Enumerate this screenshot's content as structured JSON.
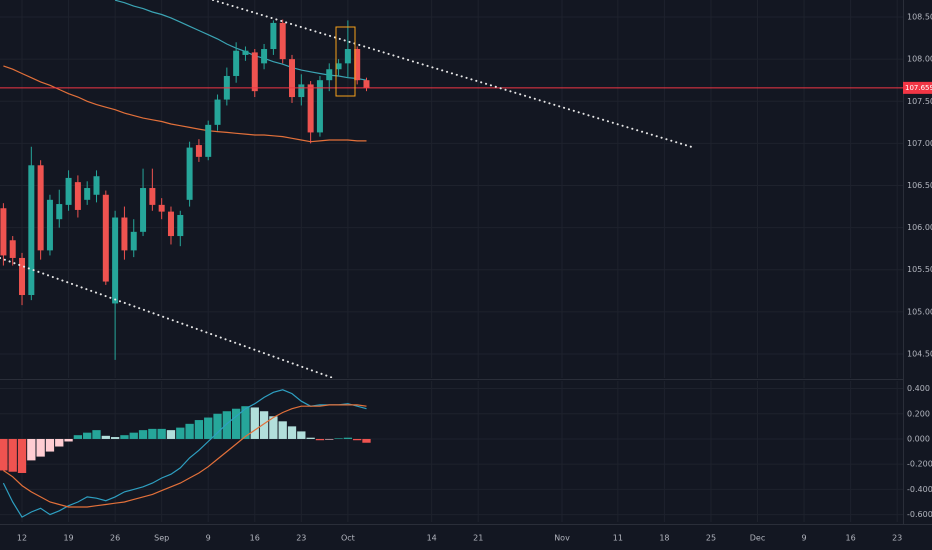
{
  "chart_data": [
    {
      "type": "candlestick",
      "categories": [
        null,
        null,
        "12",
        null,
        null,
        null,
        null,
        "19",
        null,
        null,
        null,
        null,
        "26",
        null,
        null,
        null,
        null,
        "Sep",
        null,
        null,
        null,
        null,
        "9",
        null,
        null,
        null,
        null,
        "16",
        null,
        null,
        null,
        null,
        "23",
        null,
        null,
        null,
        null,
        "Oct",
        null,
        null,
        null,
        null,
        null,
        null,
        null,
        null,
        "14",
        null,
        null,
        null,
        null,
        "21",
        null,
        null,
        null,
        null,
        null,
        null,
        null,
        null,
        "Nov",
        null,
        null,
        null,
        null,
        null,
        "11",
        null,
        null,
        null,
        null,
        "18",
        null,
        null,
        null,
        null,
        "25",
        null,
        null,
        null,
        null,
        "Dec",
        null,
        null,
        null,
        null,
        "9",
        null,
        null,
        null,
        null,
        "16",
        null,
        null,
        null,
        null,
        "23"
      ],
      "open": [
        106.23,
        105.85,
        105.64,
        105.2,
        106.74,
        105.73,
        106.1,
        106.27,
        106.54,
        106.33,
        106.39,
        106.39,
        105.1,
        106.12,
        105.73,
        105.95,
        106.47,
        106.27,
        106.19,
        105.9,
        106.33,
        106.98,
        106.84,
        107.22,
        107.52,
        107.8,
        108.05,
        108.08,
        107.95,
        108.12,
        108.43,
        108.0,
        107.55,
        107.7,
        107.13,
        107.75,
        107.88,
        107.95,
        108.12,
        107.75,
        null,
        null,
        null,
        null,
        null,
        null,
        null,
        null,
        null,
        null,
        null,
        null,
        null,
        null,
        null,
        null,
        null,
        null,
        null,
        null,
        null,
        null,
        null,
        null,
        null,
        null,
        null,
        null,
        null,
        null,
        null,
        null,
        null,
        null,
        null,
        null,
        null,
        null,
        null,
        null,
        null,
        null,
        null,
        null,
        null,
        null,
        null,
        null,
        null,
        null,
        null,
        null,
        null,
        null,
        null,
        null,
        null
      ],
      "high": [
        106.29,
        105.9,
        105.7,
        106.96,
        106.8,
        106.39,
        106.45,
        106.68,
        106.62,
        106.55,
        106.68,
        106.44,
        106.2,
        106.25,
        106.1,
        106.7,
        106.7,
        106.35,
        106.25,
        106.2,
        107.02,
        107.05,
        107.27,
        107.58,
        107.9,
        108.2,
        108.15,
        108.12,
        108.18,
        108.46,
        108.47,
        108.05,
        107.82,
        107.74,
        107.8,
        107.95,
        108.0,
        108.46,
        108.15,
        107.78,
        null,
        null,
        null,
        null,
        null,
        null,
        null,
        null,
        null,
        null,
        null,
        null,
        null,
        null,
        null,
        null,
        null,
        null,
        null,
        null,
        null,
        null,
        null,
        null,
        null,
        null,
        null,
        null,
        null,
        null,
        null,
        null,
        null,
        null,
        null,
        null,
        null,
        null,
        null,
        null,
        null,
        null,
        null,
        null,
        null,
        null,
        null,
        null,
        null,
        null,
        null,
        null,
        null,
        null,
        null,
        null,
        null
      ],
      "low": [
        105.55,
        105.55,
        105.08,
        105.14,
        105.62,
        105.67,
        106.0,
        106.2,
        106.12,
        106.27,
        106.3,
        105.32,
        104.43,
        105.62,
        105.65,
        105.9,
        106.2,
        106.1,
        105.8,
        105.78,
        106.25,
        106.78,
        106.8,
        107.15,
        107.45,
        107.72,
        107.98,
        107.55,
        107.88,
        108.05,
        107.95,
        107.48,
        107.45,
        107.0,
        107.08,
        107.62,
        107.8,
        107.78,
        107.7,
        107.62,
        null,
        null,
        null,
        null,
        null,
        null,
        null,
        null,
        null,
        null,
        null,
        null,
        null,
        null,
        null,
        null,
        null,
        null,
        null,
        null,
        null,
        null,
        null,
        null,
        null,
        null,
        null,
        null,
        null,
        null,
        null,
        null,
        null,
        null,
        null,
        null,
        null,
        null,
        null,
        null,
        null,
        null,
        null,
        null,
        null,
        null,
        null,
        null,
        null,
        null,
        null,
        null,
        null,
        null,
        null,
        null,
        null
      ],
      "close": [
        105.67,
        105.64,
        105.2,
        106.74,
        105.73,
        106.33,
        106.28,
        106.59,
        106.21,
        106.47,
        106.61,
        105.36,
        106.12,
        105.73,
        105.95,
        106.47,
        106.27,
        106.19,
        105.9,
        106.15,
        106.95,
        106.84,
        107.22,
        107.52,
        107.8,
        108.1,
        108.1,
        107.62,
        108.12,
        108.43,
        108.0,
        107.55,
        107.7,
        107.13,
        107.75,
        107.88,
        107.95,
        108.12,
        107.75,
        107.659,
        null,
        null,
        null,
        null,
        null,
        null,
        null,
        null,
        null,
        null,
        null,
        null,
        null,
        null,
        null,
        null,
        null,
        null,
        null,
        null,
        null,
        null,
        null,
        null,
        null,
        null,
        null,
        null,
        null,
        null,
        null,
        null,
        null,
        null,
        null,
        null,
        null,
        null,
        null,
        null,
        null,
        null,
        null,
        null,
        null,
        null,
        null,
        null,
        null,
        null,
        null,
        null,
        null,
        null,
        null,
        null,
        null
      ],
      "up_color": "#26a69a",
      "down_color": "#ef5350",
      "series": [
        {
          "color": "#3ba4b4",
          "values": [
            null,
            null,
            null,
            null,
            null,
            null,
            null,
            null,
            null,
            null,
            null,
            null,
            108.7,
            108.67,
            108.63,
            108.6,
            108.56,
            108.53,
            108.49,
            108.44,
            108.39,
            108.34,
            108.29,
            108.24,
            108.18,
            108.13,
            108.09,
            108.04,
            108.01,
            107.97,
            107.94,
            107.9,
            107.87,
            107.85,
            107.83,
            107.81,
            107.8,
            107.78,
            107.77,
            107.75,
            null,
            null,
            null,
            null,
            null,
            null,
            null,
            null,
            null,
            null,
            null,
            null,
            null,
            null,
            null,
            null,
            null,
            null,
            null,
            null,
            null,
            null,
            null,
            null,
            null,
            null,
            null,
            null,
            null,
            null,
            null,
            null,
            null,
            null,
            null,
            null,
            null,
            null,
            null,
            null,
            null,
            null,
            null,
            null,
            null,
            null,
            null,
            null,
            null,
            null,
            null,
            null,
            null,
            null,
            null,
            null,
            null
          ]
        },
        {
          "color": "#e2703a",
          "values": [
            107.92,
            107.88,
            107.83,
            107.78,
            107.73,
            107.69,
            107.64,
            107.59,
            107.55,
            107.5,
            107.46,
            107.43,
            107.4,
            107.36,
            107.33,
            107.3,
            107.28,
            107.26,
            107.23,
            107.21,
            107.19,
            107.17,
            107.15,
            107.14,
            107.13,
            107.12,
            107.11,
            107.1,
            107.1,
            107.09,
            107.08,
            107.06,
            107.04,
            107.02,
            107.03,
            107.04,
            107.04,
            107.04,
            107.03,
            107.03,
            null,
            null,
            null,
            null,
            null,
            null,
            null,
            null,
            null,
            null,
            null,
            null,
            null,
            null,
            null,
            null,
            null,
            null,
            null,
            null,
            null,
            null,
            null,
            null,
            null,
            null,
            null,
            null,
            null,
            null,
            null,
            null,
            null,
            null,
            null,
            null,
            null,
            null,
            null,
            null,
            null,
            null,
            null,
            null,
            null,
            null,
            null,
            null,
            null,
            null,
            null,
            null,
            null,
            null,
            null,
            null,
            null
          ]
        }
      ],
      "last_price": 107.659,
      "last_price_color": "#f23645",
      "ylim": [
        104.215,
        108.702
      ],
      "yticks": [
        {
          "value": 104.5,
          "label": "104.500"
        },
        {
          "value": 105,
          "label": "105.000"
        },
        {
          "value": 105.5,
          "label": "105.500"
        },
        {
          "value": 106,
          "label": "106.000"
        },
        {
          "value": 106.5,
          "label": "106.500"
        },
        {
          "value": 107,
          "label": "107.000"
        },
        {
          "value": 107.5,
          "label": "107.500"
        },
        {
          "value": 108,
          "label": "108.000"
        },
        {
          "value": 108.5,
          "label": "108.500"
        }
      ],
      "grid": true
    },
    {
      "type": "macd",
      "histogram": [
        -0.25,
        -0.26,
        -0.27,
        -0.17,
        -0.14,
        -0.1,
        -0.06,
        -0.02,
        0.03,
        0.05,
        0.07,
        0.025,
        0.015,
        0.03,
        0.05,
        0.07,
        0.08,
        0.08,
        0.07,
        0.09,
        0.12,
        0.15,
        0.17,
        0.2,
        0.22,
        0.24,
        0.26,
        0.25,
        0.22,
        0.18,
        0.14,
        0.1,
        0.06,
        0.01,
        -0.01,
        -0.005,
        0.005,
        0.01,
        -0.01,
        -0.03,
        null,
        null,
        null,
        null,
        null,
        null,
        null,
        null,
        null,
        null,
        null,
        null,
        null,
        null,
        null,
        null,
        null,
        null,
        null,
        null,
        null,
        null,
        null,
        null,
        null,
        null,
        null,
        null,
        null,
        null,
        null,
        null,
        null,
        null,
        null,
        null,
        null,
        null,
        null,
        null,
        null,
        null,
        null,
        null,
        null,
        null,
        null,
        null,
        null,
        null,
        null,
        null,
        null,
        null,
        null,
        null,
        null
      ],
      "histogram_colors": {
        "positive_growing": "#26a69a",
        "positive_falling": "#b2dfdb",
        "negative_growing": "#ef5350",
        "negative_falling": "#ffcdd2"
      },
      "series": [
        {
          "color": "#2e9fc1",
          "values": [
            -0.35,
            -0.5,
            -0.62,
            -0.58,
            -0.55,
            -0.6,
            -0.57,
            -0.53,
            -0.5,
            -0.46,
            -0.47,
            -0.49,
            -0.46,
            -0.42,
            -0.4,
            -0.38,
            -0.35,
            -0.31,
            -0.28,
            -0.23,
            -0.15,
            -0.09,
            -0.02,
            0.05,
            0.12,
            0.18,
            0.24,
            0.28,
            0.33,
            0.37,
            0.39,
            0.36,
            0.3,
            0.26,
            0.27,
            0.27,
            0.27,
            0.28,
            0.26,
            0.24,
            null,
            null,
            null,
            null,
            null,
            null,
            null,
            null,
            null,
            null,
            null,
            null,
            null,
            null,
            null,
            null,
            null,
            null,
            null,
            null,
            null,
            null,
            null,
            null,
            null,
            null,
            null,
            null,
            null,
            null,
            null,
            null,
            null,
            null,
            null,
            null,
            null,
            null,
            null,
            null,
            null,
            null,
            null,
            null,
            null,
            null,
            null,
            null,
            null,
            null,
            null,
            null,
            null,
            null,
            null,
            null,
            null
          ]
        },
        {
          "color": "#e2703a",
          "values": [
            -0.25,
            -0.3,
            -0.37,
            -0.42,
            -0.46,
            -0.5,
            -0.52,
            -0.54,
            -0.54,
            -0.54,
            -0.53,
            -0.52,
            -0.51,
            -0.5,
            -0.48,
            -0.46,
            -0.44,
            -0.41,
            -0.38,
            -0.35,
            -0.31,
            -0.27,
            -0.22,
            -0.16,
            -0.1,
            -0.04,
            0.02,
            0.07,
            0.12,
            0.17,
            0.21,
            0.24,
            0.26,
            0.26,
            0.26,
            0.27,
            0.27,
            0.27,
            0.27,
            0.26,
            null,
            null,
            null,
            null,
            null,
            null,
            null,
            null,
            null,
            null,
            null,
            null,
            null,
            null,
            null,
            null,
            null,
            null,
            null,
            null,
            null,
            null,
            null,
            null,
            null,
            null,
            null,
            null,
            null,
            null,
            null,
            null,
            null,
            null,
            null,
            null,
            null,
            null,
            null,
            null,
            null,
            null,
            null,
            null,
            null,
            null,
            null,
            null,
            null,
            null,
            null,
            null,
            null,
            null,
            null,
            null,
            null
          ]
        }
      ],
      "ylim": [
        -0.659,
        0.46
      ],
      "yticks": [
        {
          "value": 0.4,
          "label": "0.400"
        },
        {
          "value": 0.2,
          "label": "0.200"
        },
        {
          "value": 0,
          "label": "0.000"
        },
        {
          "value": -0.2,
          "label": "-0.200"
        },
        {
          "value": -0.4,
          "label": "-0.400"
        },
        {
          "value": -0.6,
          "label": "-0.600"
        }
      ],
      "grid": true
    }
  ]
}
